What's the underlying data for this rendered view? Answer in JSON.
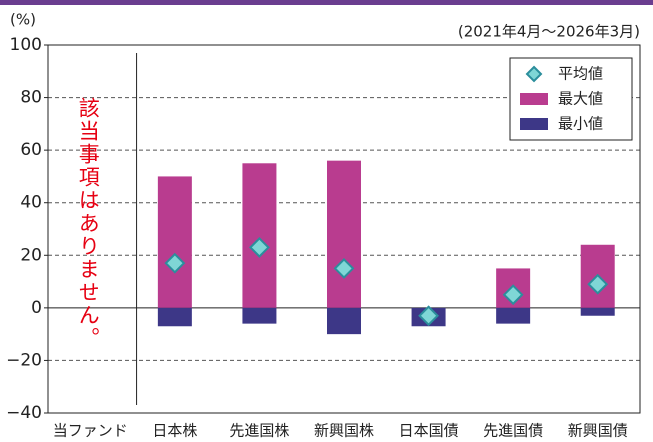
{
  "chart_data": {
    "type": "bar",
    "unit_label": "(%)",
    "period": "(2021年4月～2026年3月)",
    "annotation": "該当事項はありません。",
    "categories": [
      "当ファンド",
      "日本株",
      "先進国株",
      "新興国株",
      "日本国債",
      "先進国債",
      "新興国債"
    ],
    "series": [
      {
        "name": "平均値",
        "color": "#7fd6d6",
        "values": [
          null,
          17,
          23,
          15,
          -3,
          5,
          9
        ]
      },
      {
        "name": "最大値",
        "color": "#b93c8f",
        "values": [
          null,
          50,
          55,
          56,
          0,
          15,
          24
        ]
      },
      {
        "name": "最小値",
        "color": "#3d3787",
        "values": [
          null,
          -7,
          -6,
          -10,
          -7,
          -6,
          -3
        ]
      }
    ],
    "ylim": [
      -40,
      100
    ],
    "yticks": [
      {
        "value": -40,
        "label": "−40"
      },
      {
        "value": -20,
        "label": "−20"
      },
      0,
      20,
      40,
      60,
      80,
      100
    ],
    "grid": true
  }
}
